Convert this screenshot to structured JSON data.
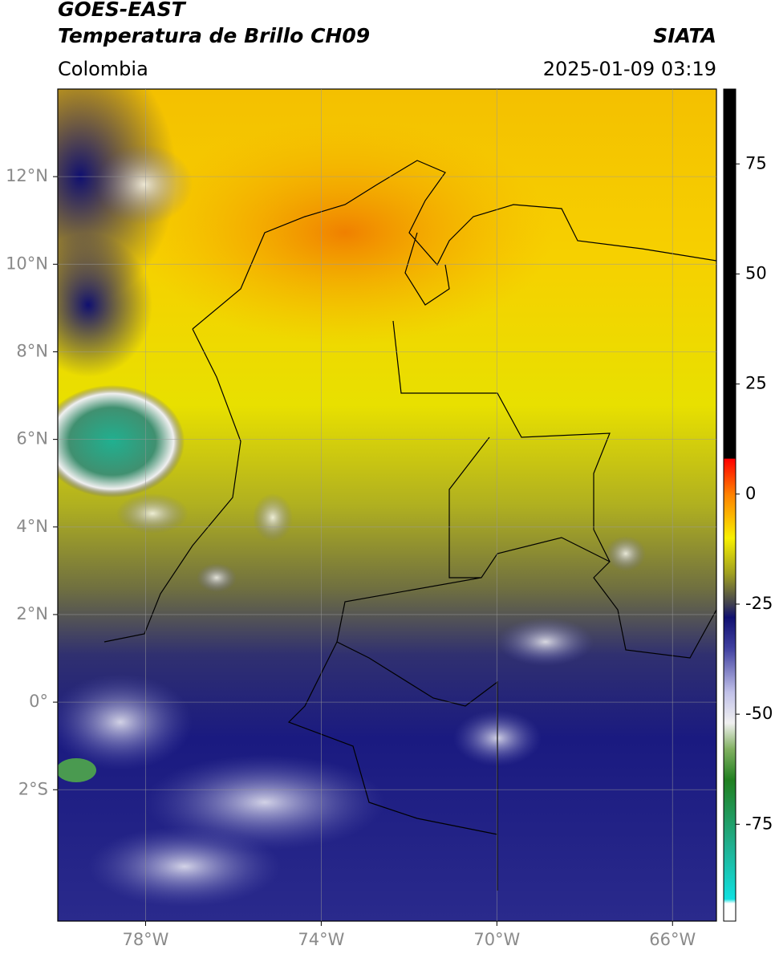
{
  "header": {
    "title": "GOES-EAST",
    "subtitle": "Temperatura de Brillo CH09",
    "region": "Colombia",
    "source": "SIATA",
    "datetime": "2025-01-09 03:19"
  },
  "map": {
    "xlim": [
      -80,
      -65
    ],
    "ylim": [
      -5,
      14
    ],
    "grid": true,
    "xticks": [
      {
        "value": -78,
        "label": "78°W"
      },
      {
        "value": -74,
        "label": "74°W"
      },
      {
        "value": -70,
        "label": "70°W"
      },
      {
        "value": -66,
        "label": "66°W"
      }
    ],
    "yticks": [
      {
        "value": 12,
        "label": "12°N"
      },
      {
        "value": 10,
        "label": "10°N"
      },
      {
        "value": 8,
        "label": "8°N"
      },
      {
        "value": 6,
        "label": "6°N"
      },
      {
        "value": 4,
        "label": "4°N"
      },
      {
        "value": 2,
        "label": "2°N"
      },
      {
        "value": 0,
        "label": "0°"
      },
      {
        "value": -2,
        "label": "2°S"
      }
    ]
  },
  "colorbar": {
    "lim": [
      -97,
      92
    ],
    "ticks": [
      75,
      50,
      25,
      0,
      -25,
      -50,
      -75
    ],
    "colormap": [
      {
        "value": -97,
        "color": "#ffffff"
      },
      {
        "value": -93,
        "color": "#ffffff"
      },
      {
        "value": -92,
        "color": "#10e0e0"
      },
      {
        "value": -80,
        "color": "#20b090"
      },
      {
        "value": -65,
        "color": "#208020"
      },
      {
        "value": -58,
        "color": "#80b060"
      },
      {
        "value": -52,
        "color": "#f0f0f0"
      },
      {
        "value": -45,
        "color": "#c0c0e8"
      },
      {
        "value": -35,
        "color": "#4040a0"
      },
      {
        "value": -28,
        "color": "#101070"
      },
      {
        "value": -25,
        "color": "#404050"
      },
      {
        "value": -18,
        "color": "#a0a020"
      },
      {
        "value": -10,
        "color": "#f8f000"
      },
      {
        "value": 0,
        "color": "#ff8000"
      },
      {
        "value": 8,
        "color": "#ff0000"
      },
      {
        "value": 8.1,
        "color": "#000000"
      },
      {
        "value": 92,
        "color": "#000000"
      }
    ]
  }
}
